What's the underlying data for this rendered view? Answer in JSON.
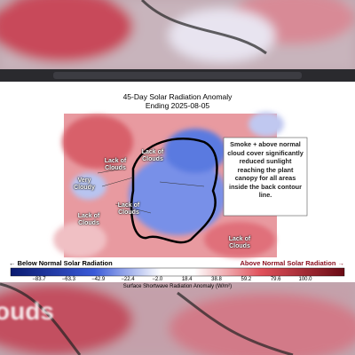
{
  "title": "45-Day Solar Radiation Anomaly",
  "subtitle": "Ending 2025-08-05",
  "map_labels": [
    "Lack of Clouds",
    "Lack of Clouds",
    "Very Cloudy",
    "Lack of Clouds",
    "Lack of Clouds",
    "Lack of Clouds"
  ],
  "callout": "Smoke + above normal cloud cover significantly reduced sunlight reaching the plant canopy for all areas inside the back contour line.",
  "legend": {
    "left": "← Below Normal Solar Radiation",
    "right": "Above Normal Solar Radiation →",
    "ticks": [
      "−83.7",
      "−63.3",
      "−42.9",
      "−22.4",
      "−2.0",
      "18.4",
      "38.8",
      "59.2",
      "79.6",
      "100.0"
    ],
    "label": "Surface Shortwave Radiation Anomaly (W/m²)"
  },
  "background_text": "ouds"
}
